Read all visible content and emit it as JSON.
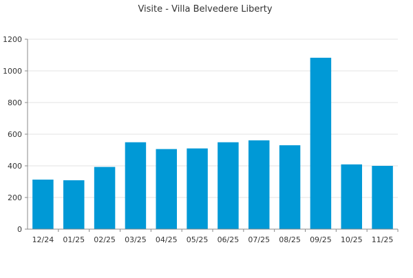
{
  "chart_data": {
    "type": "bar",
    "title": "Visite - Villa Belvedere Liberty",
    "xlabel": "",
    "ylabel": "",
    "categories": [
      "12/24",
      "01/25",
      "02/25",
      "03/25",
      "04/25",
      "05/25",
      "06/25",
      "07/25",
      "08/25",
      "09/25",
      "10/25",
      "11/25"
    ],
    "values": [
      313,
      309,
      393,
      549,
      506,
      510,
      549,
      561,
      530,
      1083,
      409,
      400
    ],
    "ylim": [
      0,
      1200
    ],
    "yticks": [
      0,
      200,
      400,
      600,
      800,
      1000,
      1200
    ],
    "grid": true,
    "legend": "none",
    "bar_color": "#0099d6"
  }
}
